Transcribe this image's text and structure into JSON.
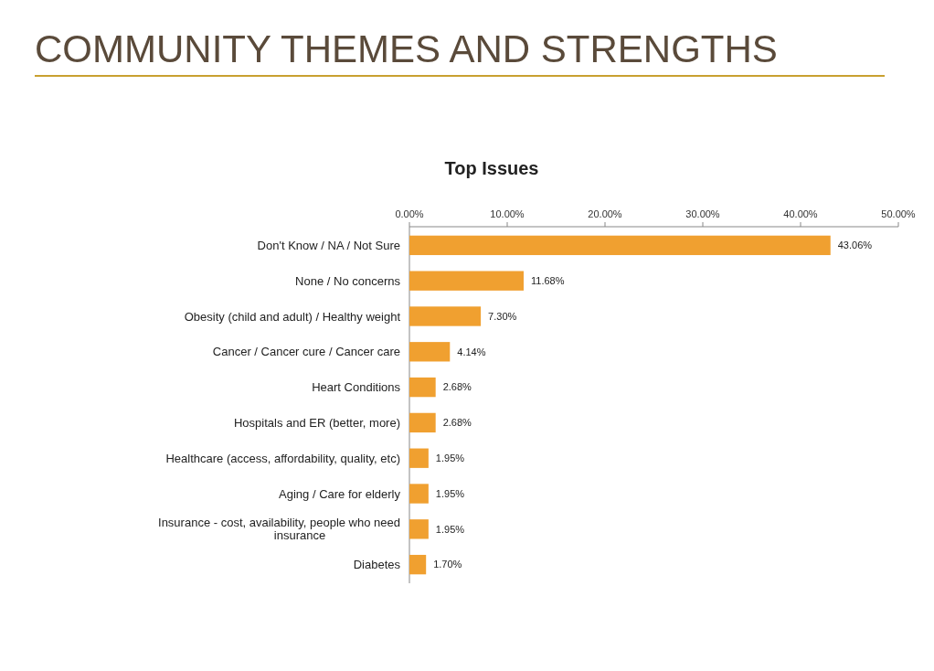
{
  "chart_data": {
    "type": "bar",
    "orientation": "horizontal",
    "title": "COMMUNITY THEMES AND STRENGTHS",
    "subtitle": "Top Issues",
    "categories": [
      "Don't Know / NA / Not Sure",
      "None / No concerns",
      "Obesity (child and adult) / Healthy weight",
      "Cancer / Cancer cure / Cancer care",
      "Heart Conditions",
      "Hospitals and ER (better, more)",
      "Healthcare (access, affordability, quality, etc)",
      "Aging / Care for elderly",
      "Insurance - cost, availability, people who need insurance",
      "Diabetes"
    ],
    "values": [
      43.06,
      11.68,
      7.3,
      4.14,
      2.68,
      2.68,
      1.95,
      1.95,
      1.95,
      1.7
    ],
    "value_labels": [
      "43.06%",
      "11.68%",
      "7.30%",
      "4.14%",
      "2.68%",
      "2.68%",
      "1.95%",
      "1.95%",
      "1.95%",
      "1.70%"
    ],
    "color": "#f0a030",
    "xlim": [
      0,
      50
    ],
    "xticks": [
      {
        "value": 0,
        "label": "0.00%"
      },
      {
        "value": 10,
        "label": "10.00%"
      },
      {
        "value": 20,
        "label": "20.00%"
      },
      {
        "value": 30,
        "label": "30.00%"
      },
      {
        "value": 40,
        "label": "40.00%"
      },
      {
        "value": 50,
        "label": "50.00%"
      }
    ],
    "grid": false
  }
}
